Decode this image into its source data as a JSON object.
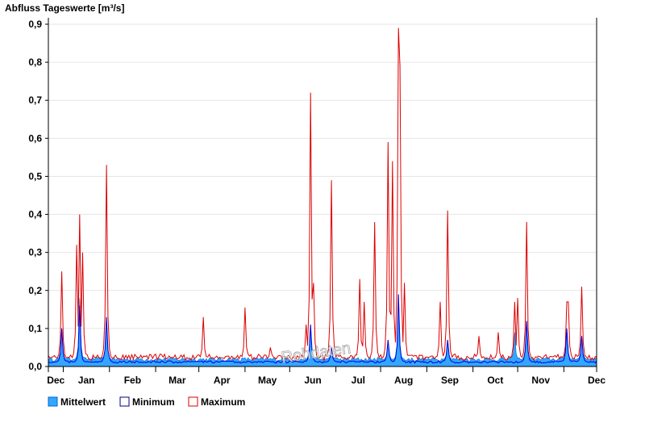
{
  "chart_data": {
    "type": "area",
    "title": "Abfluss Tageswerte [m³/s]",
    "y_axis": {
      "range": [
        0,
        0.9
      ],
      "ticks": [
        {
          "value": 0.0,
          "label": "0,0"
        },
        {
          "value": 0.1,
          "label": "0,1"
        },
        {
          "value": 0.2,
          "label": "0,2"
        },
        {
          "value": 0.3,
          "label": "0,3"
        },
        {
          "value": 0.4,
          "label": "0,4"
        },
        {
          "value": 0.5,
          "label": "0,5"
        },
        {
          "value": 0.6,
          "label": "0,6"
        },
        {
          "value": 0.7,
          "label": "0,7"
        },
        {
          "value": 0.8,
          "label": "0,8"
        },
        {
          "value": 0.9,
          "label": "0,9"
        }
      ],
      "grid": true
    },
    "x_axis": {
      "range_days": [
        0,
        368
      ],
      "month_boundaries": [
        0,
        10,
        41,
        72,
        101,
        132,
        162,
        193,
        223,
        254,
        285,
        315,
        346,
        368
      ],
      "labels": [
        {
          "day": 5,
          "label": "Dec"
        },
        {
          "day": 25.5,
          "label": "Jan"
        },
        {
          "day": 56.5,
          "label": "Feb"
        },
        {
          "day": 86.5,
          "label": "Mar"
        },
        {
          "day": 116.5,
          "label": "Apr"
        },
        {
          "day": 147,
          "label": "May"
        },
        {
          "day": 177.5,
          "label": "Jun"
        },
        {
          "day": 208,
          "label": "Jul"
        },
        {
          "day": 238.5,
          "label": "Aug"
        },
        {
          "day": 269.5,
          "label": "Sep"
        },
        {
          "day": 300,
          "label": "Oct"
        },
        {
          "day": 330.5,
          "label": "Nov"
        },
        {
          "day": 368,
          "label": "Dec"
        }
      ]
    },
    "legend": {
      "position": "bottom-left",
      "items": [
        {
          "key": "mean",
          "label": "Mittelwert"
        },
        {
          "key": "min",
          "label": "Minimum"
        },
        {
          "key": "max",
          "label": "Maximum"
        }
      ]
    },
    "colors": {
      "mean_fill": "#33a6ff",
      "mean_stroke": "#0066cc",
      "min": "#0000dd",
      "max": "#dd0000",
      "grid": "#e6e6e6",
      "axis": "#000000"
    },
    "series": [
      {
        "name": "Maximum",
        "key": "max",
        "baseline": 0.02,
        "peaks": [
          [
            9,
            0.25
          ],
          [
            19,
            0.32
          ],
          [
            21,
            0.4
          ],
          [
            23,
            0.3
          ],
          [
            39,
            0.53
          ],
          [
            62,
            0.03
          ],
          [
            104,
            0.13
          ],
          [
            132,
            0.155
          ],
          [
            149,
            0.05
          ],
          [
            173,
            0.11
          ],
          [
            176,
            0.72
          ],
          [
            178,
            0.22
          ],
          [
            190,
            0.49
          ],
          [
            209,
            0.23
          ],
          [
            212,
            0.17
          ],
          [
            219,
            0.38
          ],
          [
            228,
            0.59
          ],
          [
            231,
            0.54
          ],
          [
            235,
            0.89
          ],
          [
            236,
            0.79
          ],
          [
            239,
            0.22
          ],
          [
            263,
            0.17
          ],
          [
            268,
            0.41
          ],
          [
            289,
            0.08
          ],
          [
            302,
            0.09
          ],
          [
            313,
            0.17
          ],
          [
            315,
            0.18
          ],
          [
            321,
            0.38
          ],
          [
            348,
            0.17
          ],
          [
            349,
            0.17
          ],
          [
            358,
            0.21
          ]
        ]
      },
      {
        "name": "Minimum",
        "key": "min",
        "baseline": 0.012,
        "peaks": [
          [
            9,
            0.11
          ],
          [
            21,
            0.16
          ],
          [
            39,
            0.23
          ],
          [
            176,
            0.16
          ],
          [
            190,
            0.06
          ],
          [
            228,
            0.09
          ],
          [
            235,
            0.2
          ],
          [
            268,
            0.09
          ],
          [
            321,
            0.14
          ],
          [
            348,
            0.12
          ],
          [
            358,
            0.09
          ]
        ]
      },
      {
        "name": "Mittelwert",
        "key": "mean",
        "baseline": 0.018,
        "peaks": [
          [
            9,
            0.1
          ],
          [
            21,
            0.18
          ],
          [
            39,
            0.13
          ],
          [
            176,
            0.11
          ],
          [
            190,
            0.05
          ],
          [
            228,
            0.07
          ],
          [
            235,
            0.19
          ],
          [
            268,
            0.07
          ],
          [
            313,
            0.09
          ],
          [
            321,
            0.12
          ],
          [
            348,
            0.1
          ],
          [
            358,
            0.08
          ]
        ]
      }
    ],
    "watermark": "Rohdaten"
  }
}
